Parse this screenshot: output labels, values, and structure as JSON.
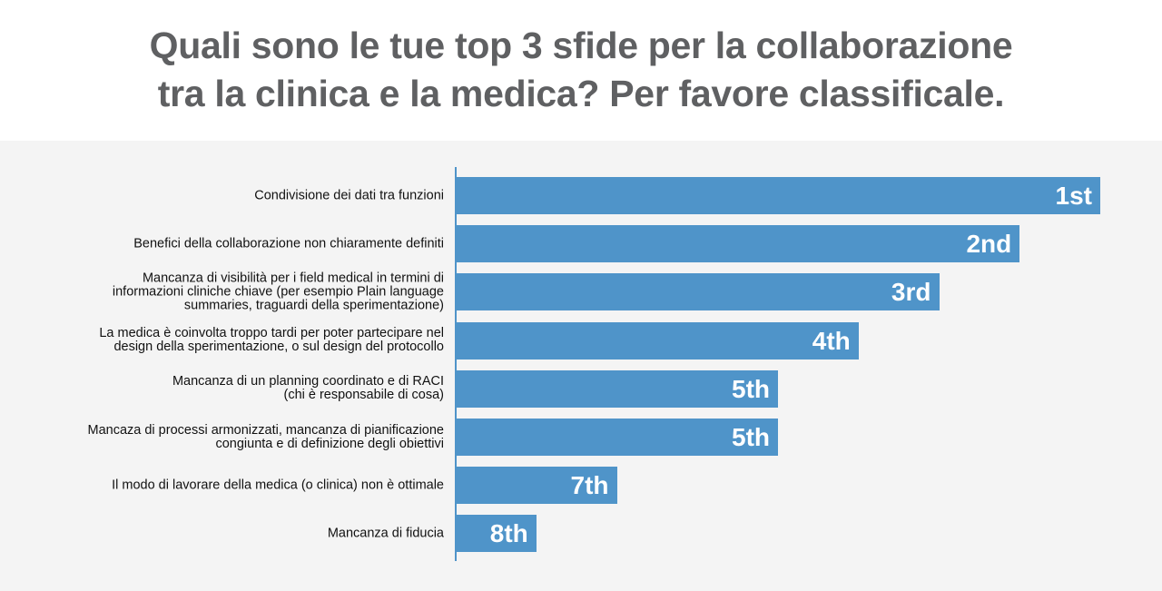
{
  "chart_data": {
    "type": "bar",
    "orientation": "horizontal",
    "title": "Quali sono le tue top 3 sfide per la collaborazione\ntra la clinica e la medica? Per favore classificale.",
    "xlabel": "",
    "ylabel": "",
    "grid": false,
    "categories": [
      "Condivisione dei dati tra funzioni",
      "Benefici della collaborazione non chiaramente definiti",
      "Mancanza di visibilità per i field medical in termini di\ninformazioni cliniche chiave (per esempio Plain language\nsummaries,  traguardi della sperimentazione)",
      "La medica è coinvolta troppo tardi per poter partecipare nel\ndesign della sperimentazione, o sul design del protocollo",
      "Mancanza di un planning coordinato e di RACI\n(chi è responsabile di cosa)",
      "Mancaza di processi armonizzati, mancanza di pianificazione\ncongiunta e di definizione degli obiettivi",
      "Il modo di lavorare della medica (o clinica) non è ottimale",
      "Mancanza di fiducia"
    ],
    "values": [
      8,
      7,
      6,
      5,
      4,
      4,
      2,
      1
    ],
    "data_labels": [
      "1st",
      "2nd",
      "3rd",
      "4th",
      "5th",
      "5th",
      "7th",
      "8th"
    ],
    "xlim": [
      0,
      8
    ],
    "bar_color": "#4f94c9"
  }
}
